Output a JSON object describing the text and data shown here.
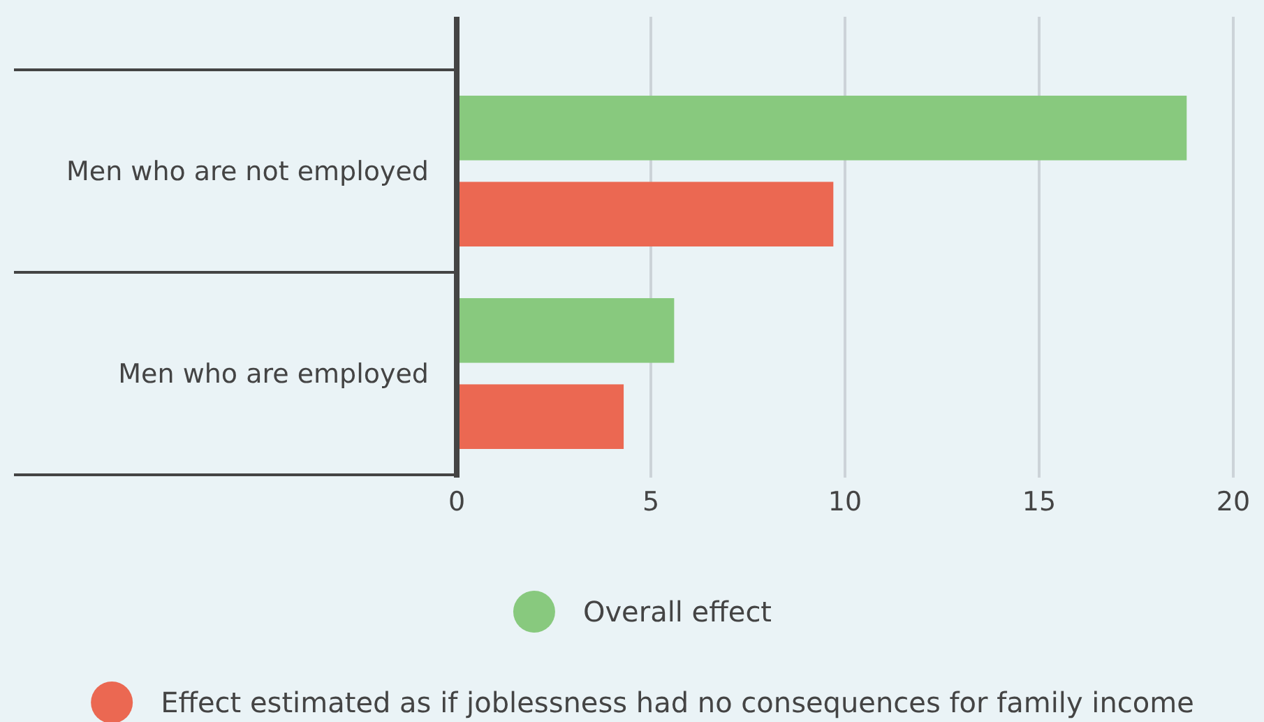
{
  "chart_data": {
    "type": "bar",
    "orientation": "horizontal",
    "categories": [
      "Men who are not employed",
      "Men who are employed"
    ],
    "series": [
      {
        "name": "Overall effect",
        "color": "#88c97e",
        "values": [
          18.8,
          5.6
        ]
      },
      {
        "name": "Effect estimated as if joblessness had no consequences for family income",
        "color": "#eb6852",
        "values": [
          9.7,
          4.3
        ]
      }
    ],
    "xlim": [
      0,
      20
    ],
    "xticks": [
      0,
      5,
      10,
      15,
      20
    ],
    "grid": "x",
    "legend": "bottom"
  }
}
